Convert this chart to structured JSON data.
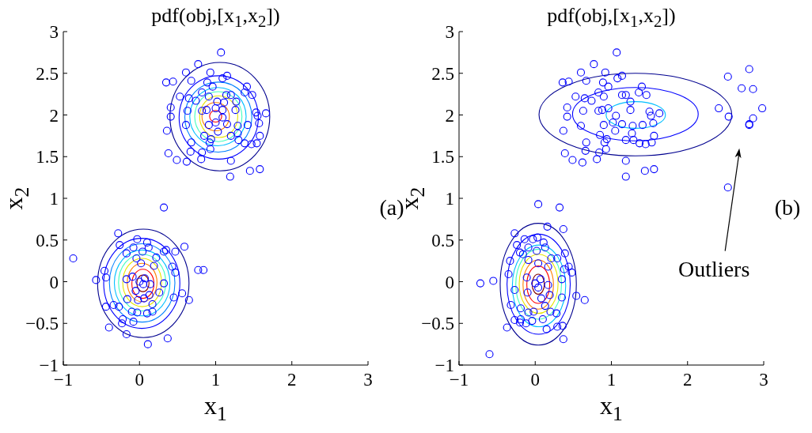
{
  "chart_data": [
    {
      "type": "scatter",
      "title": "pdf(obj,[x$_{1}$,x$_{2}$])",
      "xlabel": "x$_{1}$",
      "ylabel": "x$_{2}$",
      "xlim": [
        -1,
        3
      ],
      "ylim": [
        -1,
        3
      ],
      "xticks": [
        -1,
        0,
        1,
        2,
        3
      ],
      "yticks": [
        -1,
        -0.5,
        0,
        0.5,
        1,
        1.5,
        2,
        2.5,
        3
      ],
      "marker": "circle",
      "annotations": [
        "(a)"
      ],
      "series": [
        {
          "color": "#0000ff",
          "x": [
            1.07,
            0.77,
            0.61,
            0.93,
            1.15,
            0.35,
            0.44,
            0.68,
            0.89,
            0.96,
            1.09,
            1.41,
            1.48,
            1.38,
            0.53,
            0.65,
            0.74,
            0.82,
            0.91,
            1.14,
            1.2,
            1.27,
            0.41,
            0.41,
            0.63,
            0.82,
            0.88,
            1.0,
            1.09,
            0.91,
            1.0,
            1.03,
            1.15,
            1.26,
            1.29,
            1.42,
            1.53,
            1.55,
            1.66,
            1.57,
            1.58,
            1.54,
            1.47,
            1.38,
            1.3,
            1.2,
            1.29,
            0.61,
            0.85,
            0.94,
            0.92,
            0.93,
            0.68,
            0.67,
            0.82,
            0.81,
            0.36,
            0.38,
            0.49,
            0.62,
            1.2,
            1.45,
            1.58,
            1.19,
            1.11,
            1.02,
            1.09,
            0.32,
            -0.87,
            -0.28,
            -0.26,
            -0.03,
            0.1,
            0.12,
            -0.08,
            -0.17,
            0.04,
            -0.04,
            0.32,
            0.35,
            0.47,
            0.59,
            0.22,
            0.02,
            0.43,
            0.47,
            0.77,
            0.84,
            -0.46,
            -0.44,
            -0.57,
            -0.17,
            0.07,
            0.0,
            0.05,
            -0.05,
            0.14,
            0.32,
            0.26,
            -0.16,
            -0.02,
            0.06,
            0.13,
            0.45,
            0.56,
            0.65,
            -0.44,
            -0.34,
            -0.27,
            -0.1,
            -0.03,
            0.1,
            0.17,
            0.17,
            -0.22,
            -0.23,
            -0.08,
            -0.4,
            -0.17,
            0.37,
            0.11,
            0.19,
            -0.09
          ],
          "values": [
            2.75,
            2.61,
            2.51,
            2.51,
            2.47,
            2.39,
            2.4,
            2.41,
            2.39,
            2.34,
            2.44,
            2.34,
            2.24,
            2.27,
            2.22,
            2.2,
            2.17,
            2.27,
            2.22,
            2.24,
            2.24,
            2.16,
            2.09,
            1.98,
            2.05,
            2.05,
            2.06,
            2.08,
            2.06,
            1.88,
            1.91,
            1.8,
            1.89,
            2.06,
            1.87,
            1.88,
            2.03,
            1.99,
            2.02,
            1.9,
            1.75,
            1.66,
            1.65,
            1.66,
            1.7,
            1.75,
            1.78,
            1.88,
            1.75,
            1.71,
            1.67,
            1.59,
            1.67,
            1.56,
            1.55,
            1.47,
            1.81,
            1.54,
            1.46,
            1.44,
            1.45,
            1.33,
            1.35,
            1.26,
            2.15,
            2.16,
            1.97,
            0.89,
            0.28,
            0.58,
            0.44,
            0.51,
            0.47,
            0.41,
            0.41,
            0.34,
            0.36,
            0.28,
            0.36,
            0.38,
            0.36,
            0.42,
            0.29,
            0.22,
            0.18,
            0.11,
            0.14,
            0.14,
            0.13,
            0.05,
            0.02,
            0.03,
            0.04,
            0.0,
            -0.03,
            -0.11,
            -0.03,
            -0.02,
            -0.13,
            -0.21,
            -0.22,
            -0.2,
            -0.16,
            -0.19,
            -0.14,
            -0.22,
            -0.3,
            -0.28,
            -0.3,
            -0.36,
            -0.37,
            -0.38,
            -0.36,
            -0.27,
            -0.45,
            -0.5,
            -0.48,
            -0.55,
            -0.63,
            -0.68,
            -0.75,
            0.19,
            0.06
          ]
        }
      ]
    },
    {
      "type": "scatter",
      "title": "pdf(obj,[x$_{1}$,x$_{2}$])",
      "xlabel": "x$_{1}$",
      "ylabel": "x$_{2}$",
      "xlim": [
        -1,
        3
      ],
      "ylim": [
        -1,
        3
      ],
      "xticks": [
        -1,
        0,
        1,
        2,
        3
      ],
      "yticks": [
        -1,
        -0.5,
        0,
        0.5,
        1,
        1.5,
        2,
        2.5,
        3
      ],
      "marker": "circle",
      "annotations": [
        "(b)",
        "Outliers"
      ],
      "series": [
        {
          "color": "#0000ff",
          "x": [
            1.07,
            0.77,
            0.6,
            0.92,
            1.14,
            0.36,
            0.44,
            0.67,
            0.89,
            0.96,
            1.08,
            1.4,
            1.46,
            1.36,
            0.53,
            0.65,
            0.74,
            0.83,
            0.9,
            1.14,
            1.19,
            1.25,
            0.42,
            0.42,
            0.63,
            0.83,
            0.88,
            0.96,
            1.06,
            0.9,
            1.02,
            1.05,
            1.14,
            1.25,
            1.28,
            1.41,
            1.5,
            1.52,
            1.63,
            1.55,
            1.56,
            1.53,
            1.45,
            1.37,
            1.29,
            1.19,
            1.27,
            0.6,
            0.85,
            0.94,
            0.91,
            0.93,
            0.67,
            0.66,
            0.84,
            0.81,
            0.37,
            0.39,
            0.49,
            0.62,
            1.19,
            1.44,
            1.56,
            1.19,
            2.53,
            2.81,
            2.71,
            2.86,
            2.98,
            2.41,
            2.54,
            2.86,
            2.81,
            2.81,
            2.53,
            0.04,
            0.32,
            0.16,
            0.37,
            -0.27,
            -0.24,
            -0.14,
            -0.03,
            0.03,
            0.11,
            0.13,
            -0.09,
            -0.2,
            -0.16,
            0.02,
            -0.33,
            -0.09,
            0.21,
            0.29,
            0.39,
            0.04,
            0.17,
            0.44,
            0.38,
            0.48,
            -0.35,
            -0.11,
            0.07,
            0.0,
            0.04,
            0.17,
            0.35,
            -0.72,
            -0.55,
            -0.27,
            0.54,
            0.65,
            0.35,
            0.19,
            -0.1,
            0.08,
            -0.32,
            -0.19,
            -0.09,
            -0.02,
            0.28,
            0.2,
            0.13,
            -0.27,
            -0.19,
            -0.12,
            -0.04,
            0.1,
            -0.37,
            -0.2,
            0.29,
            0.36,
            0.15,
            0.37,
            -0.6
          ],
          "values": [
            2.75,
            2.61,
            2.51,
            2.51,
            2.47,
            2.39,
            2.4,
            2.41,
            2.39,
            2.34,
            2.44,
            2.34,
            2.24,
            2.27,
            2.22,
            2.2,
            2.17,
            2.27,
            2.22,
            2.24,
            2.24,
            2.16,
            2.09,
            1.98,
            2.05,
            2.05,
            2.06,
            2.08,
            1.99,
            1.88,
            1.91,
            1.81,
            1.89,
            2.06,
            1.87,
            1.88,
            2.04,
            1.99,
            2.02,
            1.9,
            1.75,
            1.67,
            1.65,
            1.66,
            1.7,
            1.7,
            1.78,
            1.87,
            1.76,
            1.71,
            1.67,
            1.59,
            1.67,
            1.57,
            1.55,
            1.47,
            1.81,
            1.54,
            1.46,
            1.43,
            1.45,
            1.33,
            1.35,
            1.26,
            2.46,
            2.55,
            2.32,
            2.31,
            2.08,
            2.08,
            1.98,
            1.96,
            1.89,
            1.88,
            1.13,
            0.93,
            0.89,
            0.66,
            0.63,
            0.58,
            0.44,
            0.51,
            0.51,
            0.53,
            0.47,
            0.41,
            0.41,
            0.35,
            0.33,
            0.37,
            0.25,
            0.26,
            0.28,
            0.28,
            0.34,
            0.22,
            0.18,
            0.18,
            0.15,
            0.11,
            0.09,
            0.05,
            0.03,
            -0.02,
            -0.07,
            -0.04,
            0.03,
            -0.02,
            0.01,
            -0.1,
            -0.17,
            -0.22,
            -0.19,
            -0.16,
            -0.13,
            -0.2,
            -0.28,
            -0.32,
            -0.37,
            -0.36,
            -0.38,
            -0.36,
            -0.29,
            -0.46,
            -0.45,
            -0.5,
            -0.47,
            -0.45,
            -0.55,
            -0.49,
            -0.54,
            -0.53,
            -0.57,
            -0.69,
            -0.87
          ]
        }
      ]
    }
  ]
}
